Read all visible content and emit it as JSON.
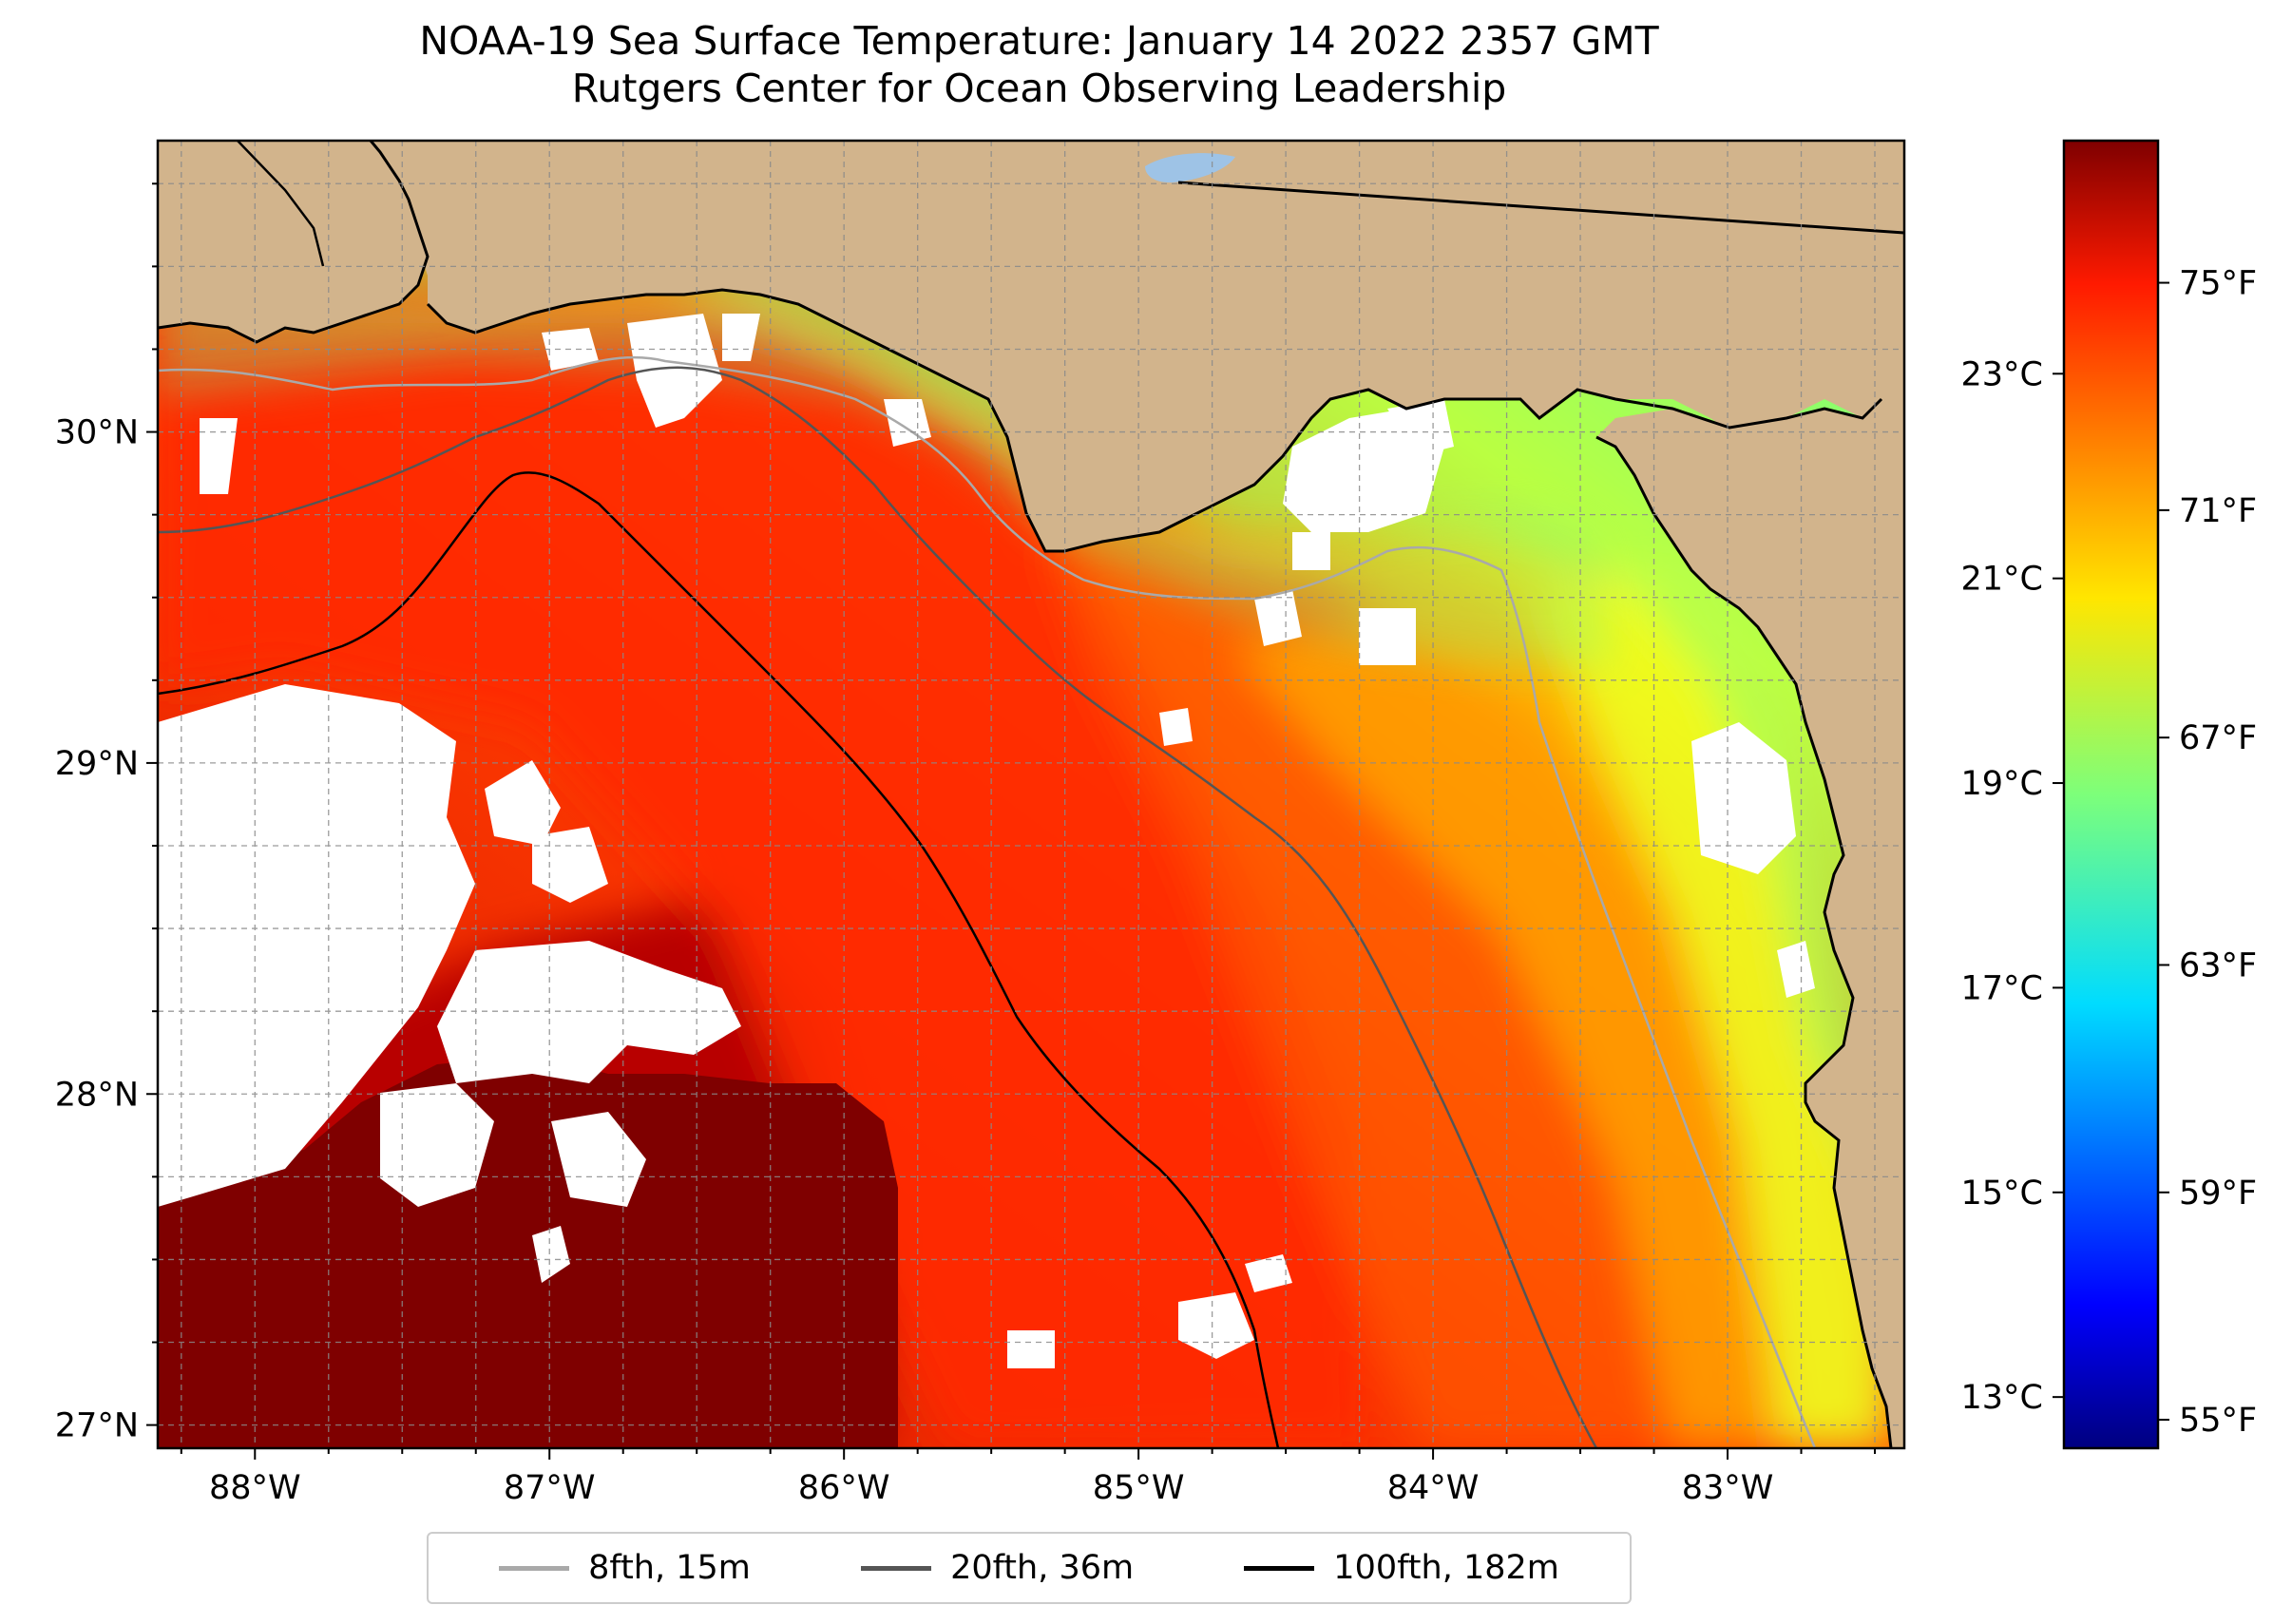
{
  "title": "NOAA-19 Sea Surface Temperature: January 14 2022 2357 GMT",
  "subtitle": "Rutgers Center for Ocean Observing Leadership",
  "map": {
    "extent": {
      "lon_min": -88.33,
      "lon_max": -82.4,
      "lat_min": 26.93,
      "lat_max": 30.88
    },
    "lon_ticks": [
      {
        "value": -88,
        "label": "88°W"
      },
      {
        "value": -87,
        "label": "87°W"
      },
      {
        "value": -86,
        "label": "86°W"
      },
      {
        "value": -85,
        "label": "85°W"
      },
      {
        "value": -84,
        "label": "84°W"
      },
      {
        "value": -83,
        "label": "83°W"
      }
    ],
    "lat_ticks": [
      {
        "value": 30,
        "label": "30°N"
      },
      {
        "value": 29,
        "label": "29°N"
      },
      {
        "value": 28,
        "label": "28°N"
      },
      {
        "value": 27,
        "label": "27°N"
      }
    ],
    "gridlines": "dashed",
    "land_color": "#d2b48c",
    "lake_color": "#9ec3e6",
    "no_data_color": "#ffffff",
    "coastline_color": "#000000"
  },
  "colorbar": {
    "colormap": "jet",
    "range_f": [
      54.5,
      77.5
    ],
    "fahrenheit_ticks": [
      {
        "value": 55,
        "label": "55°F"
      },
      {
        "value": 59,
        "label": "59°F"
      },
      {
        "value": 63,
        "label": "63°F"
      },
      {
        "value": 67,
        "label": "67°F"
      },
      {
        "value": 71,
        "label": "71°F"
      },
      {
        "value": 75,
        "label": "75°F"
      }
    ],
    "celsius_ticks": [
      {
        "value": 13,
        "label": "13°C"
      },
      {
        "value": 15,
        "label": "15°C"
      },
      {
        "value": 17,
        "label": "17°C"
      },
      {
        "value": 19,
        "label": "19°C"
      },
      {
        "value": 21,
        "label": "21°C"
      },
      {
        "value": 23,
        "label": "23°C"
      }
    ]
  },
  "legend": {
    "placement": "bottom-center",
    "items": [
      {
        "label": "8fth, 15m",
        "color": "#a9a9a9"
      },
      {
        "label": "20fth, 36m",
        "color": "#555555"
      },
      {
        "label": "100fth, 182m",
        "color": "#000000"
      }
    ]
  }
}
